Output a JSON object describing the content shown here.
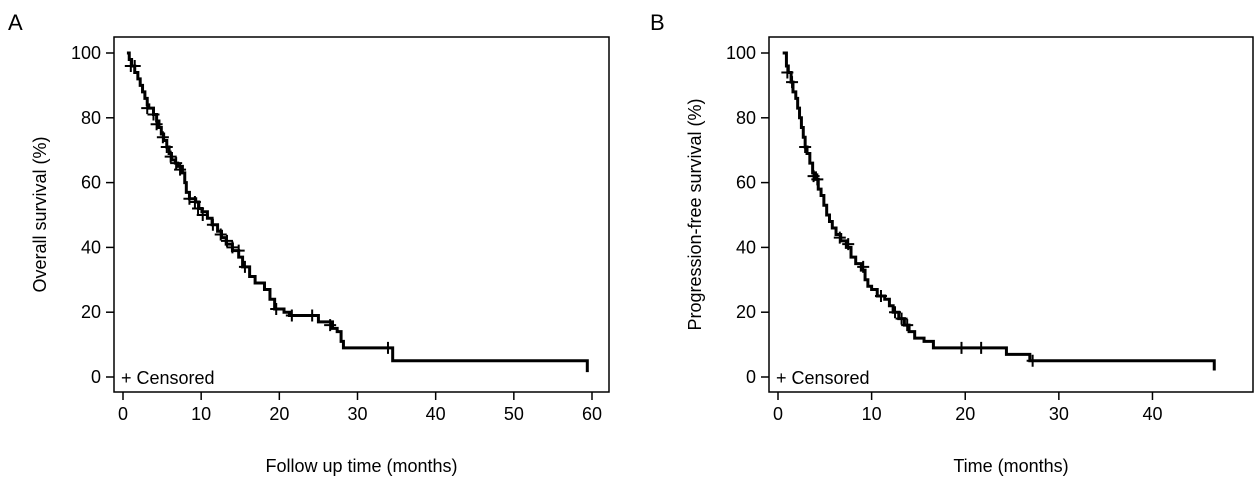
{
  "chart_data": [
    {
      "panel_label": "A",
      "type": "line",
      "step": true,
      "xlabel": "Follow up time (months)",
      "ylabel": "Overall survival (%)",
      "xlim": [
        0,
        60
      ],
      "ylim": [
        0,
        100
      ],
      "xticks": [
        0,
        10,
        20,
        30,
        40,
        50,
        60
      ],
      "yticks": [
        0,
        20,
        40,
        60,
        80,
        100
      ],
      "legend": "+ Censored",
      "legend_position": "bottom-left",
      "grid": false,
      "curve": [
        [
          0.5,
          100
        ],
        [
          0.8,
          98
        ],
        [
          1.1,
          96
        ],
        [
          1.5,
          94
        ],
        [
          1.9,
          92
        ],
        [
          2.2,
          90
        ],
        [
          2.5,
          88
        ],
        [
          2.8,
          86
        ],
        [
          3.1,
          84
        ],
        [
          3.3,
          83
        ],
        [
          3.9,
          81
        ],
        [
          4.3,
          79
        ],
        [
          4.6,
          77
        ],
        [
          4.9,
          75
        ],
        [
          5.2,
          73
        ],
        [
          5.6,
          71
        ],
        [
          5.9,
          69
        ],
        [
          6.2,
          67
        ],
        [
          6.7,
          66
        ],
        [
          7.0,
          65
        ],
        [
          7.6,
          63
        ],
        [
          7.9,
          60
        ],
        [
          8.1,
          57
        ],
        [
          8.5,
          55
        ],
        [
          9.3,
          54
        ],
        [
          9.7,
          52
        ],
        [
          10.1,
          51
        ],
        [
          10.8,
          49
        ],
        [
          11.4,
          47
        ],
        [
          12.1,
          45
        ],
        [
          12.6,
          43
        ],
        [
          13.2,
          41
        ],
        [
          14.0,
          39
        ],
        [
          14.8,
          37
        ],
        [
          15.3,
          34
        ],
        [
          16.2,
          31
        ],
        [
          16.9,
          29
        ],
        [
          18.1,
          27
        ],
        [
          18.8,
          24
        ],
        [
          19.4,
          21
        ],
        [
          20.6,
          20
        ],
        [
          21.3,
          19
        ],
        [
          25.0,
          17
        ],
        [
          26.8,
          15
        ],
        [
          27.4,
          14
        ],
        [
          27.9,
          11
        ],
        [
          28.2,
          9
        ],
        [
          34.5,
          5
        ],
        [
          59.4,
          1.5
        ]
      ],
      "end_x": 59.4,
      "censored": [
        [
          1.0,
          96
        ],
        [
          1.5,
          96
        ],
        [
          3.1,
          83
        ],
        [
          3.9,
          81
        ],
        [
          4.3,
          78
        ],
        [
          5.1,
          74
        ],
        [
          5.6,
          71
        ],
        [
          6.1,
          68
        ],
        [
          6.8,
          66
        ],
        [
          7.3,
          64
        ],
        [
          8.5,
          55
        ],
        [
          9.2,
          54
        ],
        [
          9.6,
          52
        ],
        [
          10.2,
          50
        ],
        [
          11.5,
          47
        ],
        [
          12.5,
          44
        ],
        [
          13.3,
          42
        ],
        [
          14.0,
          40
        ],
        [
          14.8,
          39
        ],
        [
          15.6,
          34
        ],
        [
          19.6,
          21
        ],
        [
          21.6,
          19
        ],
        [
          24.2,
          19
        ],
        [
          26.5,
          16
        ],
        [
          33.9,
          9
        ]
      ]
    },
    {
      "panel_label": "B",
      "type": "line",
      "step": true,
      "xlabel": "Time (months)",
      "ylabel": "Progression-free survival (%)",
      "xlim": [
        0,
        47
      ],
      "ylim": [
        0,
        100
      ],
      "xticks": [
        0,
        10,
        20,
        30,
        40
      ],
      "yticks": [
        0,
        20,
        40,
        60,
        80,
        100
      ],
      "legend": "+ Censored",
      "legend_position": "bottom-left",
      "grid": false,
      "curve": [
        [
          0.5,
          100
        ],
        [
          0.9,
          96
        ],
        [
          1.1,
          94
        ],
        [
          1.4,
          91
        ],
        [
          1.6,
          88
        ],
        [
          1.9,
          86
        ],
        [
          2.1,
          83
        ],
        [
          2.3,
          80
        ],
        [
          2.5,
          77
        ],
        [
          2.7,
          74
        ],
        [
          2.9,
          71
        ],
        [
          3.1,
          69
        ],
        [
          3.4,
          66
        ],
        [
          3.7,
          63
        ],
        [
          4.0,
          61
        ],
        [
          4.3,
          58
        ],
        [
          4.6,
          56
        ],
        [
          4.9,
          53
        ],
        [
          5.2,
          50
        ],
        [
          5.5,
          48
        ],
        [
          5.8,
          46
        ],
        [
          6.2,
          44
        ],
        [
          6.7,
          42
        ],
        [
          7.3,
          40
        ],
        [
          7.8,
          37
        ],
        [
          8.3,
          35
        ],
        [
          8.9,
          33
        ],
        [
          9.3,
          30
        ],
        [
          9.6,
          28
        ],
        [
          10.0,
          27
        ],
        [
          10.6,
          25
        ],
        [
          11.4,
          24
        ],
        [
          11.9,
          22
        ],
        [
          12.3,
          20
        ],
        [
          12.9,
          18
        ],
        [
          13.5,
          16
        ],
        [
          14.0,
          14
        ],
        [
          14.6,
          12
        ],
        [
          15.6,
          11
        ],
        [
          16.6,
          9
        ],
        [
          24.4,
          7
        ],
        [
          26.9,
          5
        ],
        [
          46.6,
          2
        ]
      ],
      "end_x": 46.6,
      "censored": [
        [
          1.0,
          94
        ],
        [
          1.5,
          91
        ],
        [
          2.9,
          71
        ],
        [
          3.8,
          62
        ],
        [
          4.2,
          61
        ],
        [
          6.6,
          43
        ],
        [
          7.5,
          41
        ],
        [
          9.1,
          34
        ],
        [
          11.0,
          25
        ],
        [
          12.5,
          20
        ],
        [
          13.2,
          18
        ],
        [
          13.8,
          16
        ],
        [
          19.6,
          9
        ],
        [
          21.7,
          9
        ],
        [
          27.2,
          5
        ]
      ]
    }
  ]
}
